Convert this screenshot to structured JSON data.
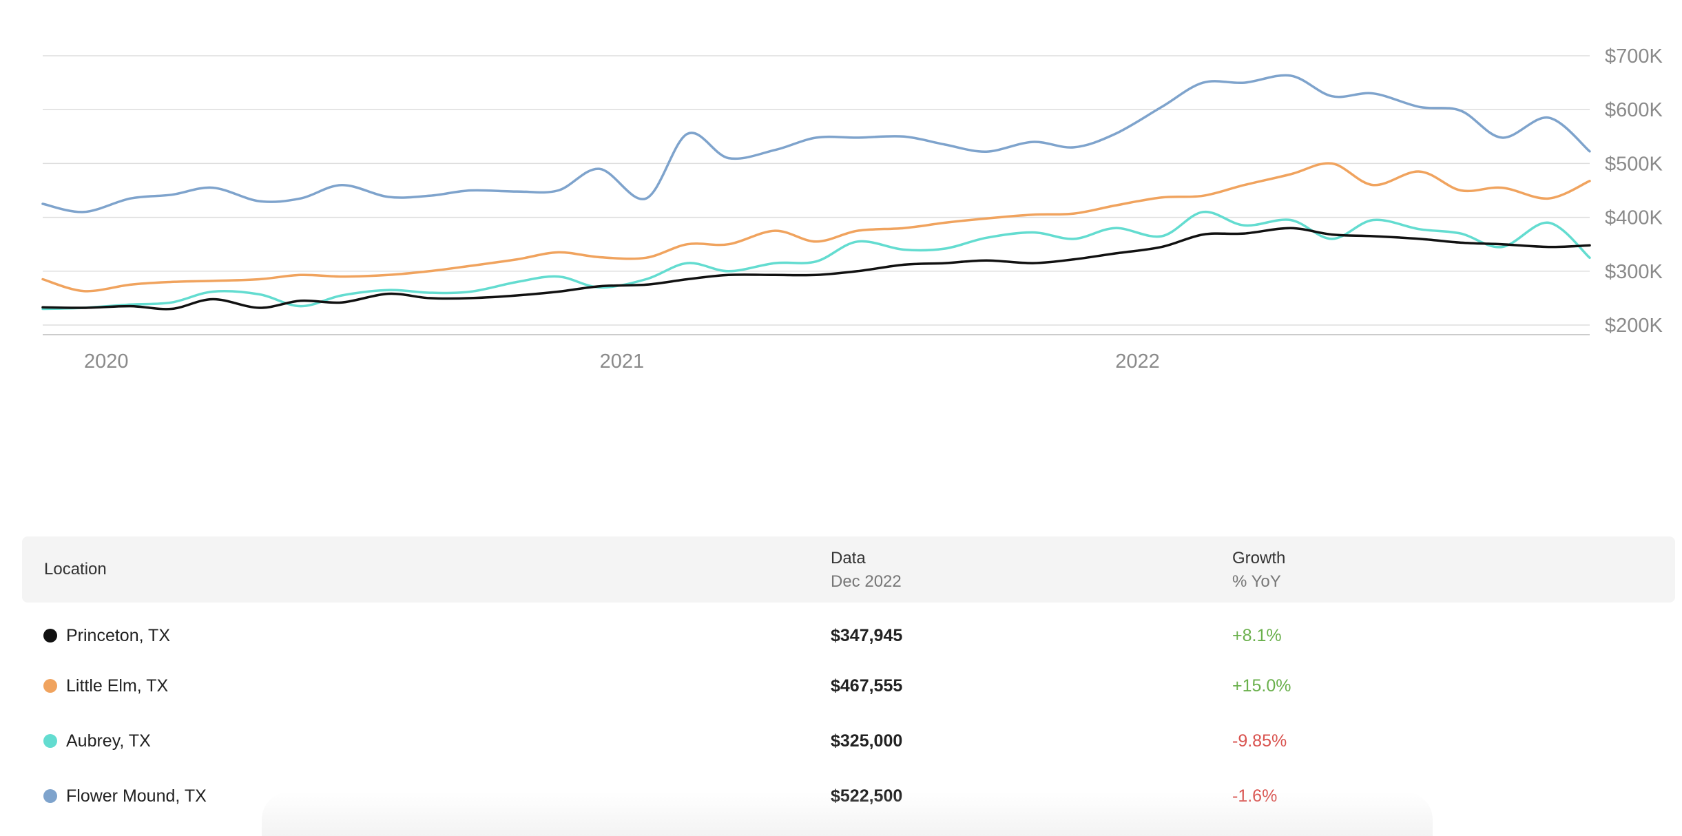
{
  "chart_data": {
    "type": "line",
    "y_ticks": [
      "$700K",
      "$600K",
      "$500K",
      "$400K",
      "$300K",
      "$200K"
    ],
    "y_tick_values": [
      700000,
      600000,
      500000,
      400000,
      300000,
      200000
    ],
    "ylim": [
      200000,
      700000
    ],
    "x_ticks": [
      "2020",
      "2021",
      "2022"
    ],
    "x_tick_values": [
      2020.0,
      2021.0,
      2022.0
    ],
    "xlim": [
      2019.96,
      2022.96
    ],
    "grid": true,
    "colors": {
      "princeton": "#111111",
      "little_elm": "#f0a35e",
      "aubrey": "#63dcd0",
      "flower_mound": "#7ea3cc"
    },
    "x": [
      2019.96,
      2020.04,
      2020.13,
      2020.21,
      2020.29,
      2020.38,
      2020.46,
      2020.54,
      2020.63,
      2020.71,
      2020.79,
      2020.88,
      2020.96,
      2021.04,
      2021.13,
      2021.21,
      2021.29,
      2021.38,
      2021.46,
      2021.54,
      2021.63,
      2021.71,
      2021.79,
      2021.88,
      2021.96,
      2022.04,
      2022.13,
      2022.21,
      2022.29,
      2022.38,
      2022.46,
      2022.54,
      2022.63,
      2022.71,
      2022.79,
      2022.88,
      2022.96
    ],
    "series": [
      {
        "key": "flower_mound",
        "values": [
          425000,
          410000,
          435000,
          442000,
          455000,
          430000,
          435000,
          460000,
          438000,
          440000,
          450000,
          448000,
          450000,
          490000,
          435000,
          555000,
          510000,
          525000,
          548000,
          548000,
          550000,
          535000,
          522000,
          540000,
          530000,
          555000,
          605000,
          650000,
          650000,
          663000,
          625000,
          630000,
          605000,
          598000,
          548000,
          585000,
          522500
        ]
      },
      {
        "key": "little_elm",
        "values": [
          285000,
          263000,
          275000,
          280000,
          282000,
          285000,
          293000,
          290000,
          293000,
          300000,
          310000,
          322000,
          335000,
          326000,
          325000,
          350000,
          350000,
          375000,
          355000,
          375000,
          380000,
          390000,
          398000,
          405000,
          407000,
          422000,
          437000,
          440000,
          460000,
          480000,
          500000,
          460000,
          485000,
          450000,
          455000,
          435000,
          467555
        ]
      },
      {
        "key": "aubrey",
        "values": [
          230000,
          232000,
          238000,
          242000,
          262000,
          257000,
          235000,
          255000,
          265000,
          260000,
          262000,
          280000,
          290000,
          270000,
          285000,
          315000,
          300000,
          315000,
          318000,
          355000,
          340000,
          342000,
          362000,
          372000,
          360000,
          380000,
          365000,
          410000,
          385000,
          395000,
          360000,
          395000,
          378000,
          370000,
          345000,
          390000,
          325000
        ]
      },
      {
        "key": "princeton",
        "values": [
          233000,
          232000,
          235000,
          230000,
          248000,
          232000,
          245000,
          242000,
          258000,
          250000,
          250000,
          255000,
          262000,
          272000,
          275000,
          285000,
          293000,
          293000,
          293000,
          300000,
          312000,
          315000,
          320000,
          315000,
          322000,
          333000,
          345000,
          368000,
          370000,
          380000,
          368000,
          365000,
          360000,
          353000,
          350000,
          345000,
          347945
        ]
      }
    ]
  },
  "table": {
    "headers": {
      "location": "Location",
      "data": "Data",
      "data_sub": "Dec 2022",
      "growth": "Growth",
      "growth_sub": "% YoY"
    },
    "rows": [
      {
        "location": "Princeton, TX",
        "value": "$347,945",
        "growth": "+8.1%",
        "dot_color": "#111111",
        "growth_color": "#6ab04c"
      },
      {
        "location": "Little Elm, TX",
        "value": "$467,555",
        "growth": "+15.0%",
        "dot_color": "#f0a35e",
        "growth_color": "#6ab04c"
      },
      {
        "location": "Aubrey, TX",
        "value": "$325,000",
        "growth": "-9.85%",
        "dot_color": "#63dcd0",
        "growth_color": "#d9534f"
      },
      {
        "location": "Flower Mound, TX",
        "value": "$522,500",
        "growth": "-1.6%",
        "dot_color": "#7ea3cc",
        "growth_color": "#d9534f"
      }
    ]
  }
}
